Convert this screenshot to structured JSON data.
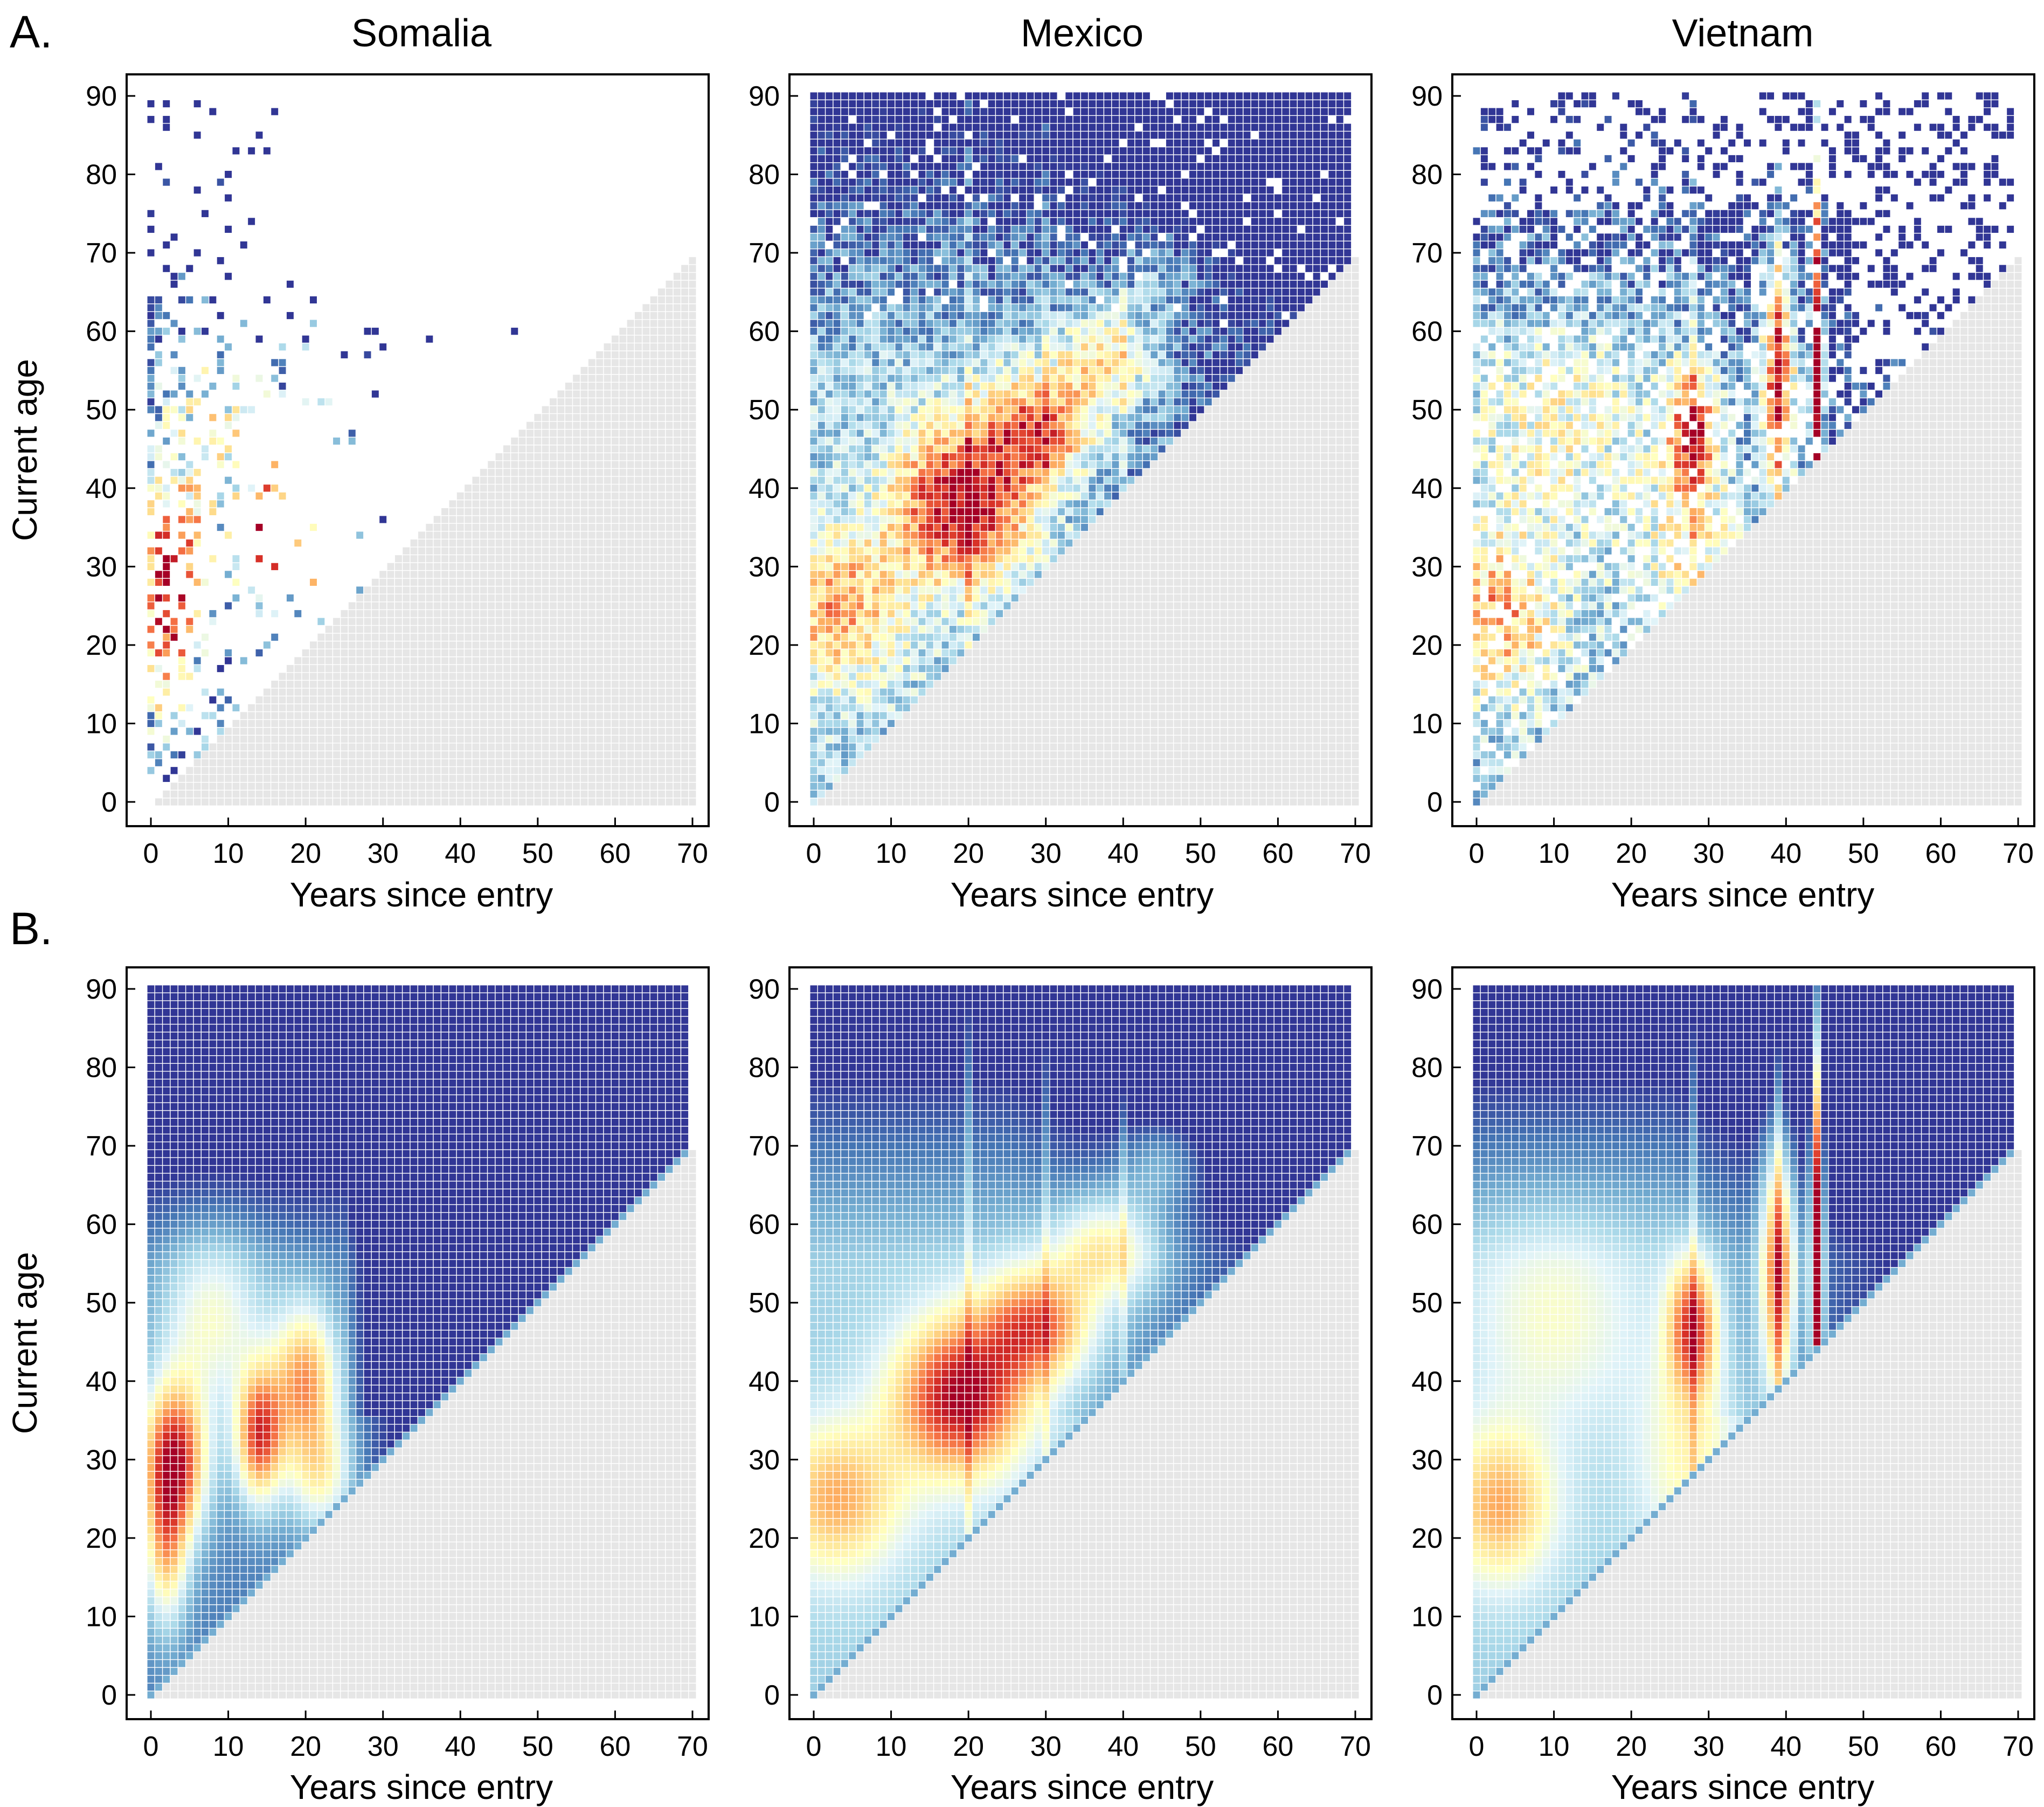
{
  "figure": {
    "row_labels": [
      "A.",
      "B."
    ],
    "country_titles": [
      "Somalia",
      "Mexico",
      "Vietnam"
    ]
  },
  "colors": {
    "palette_low": "#313695",
    "palette_mid": "#ffffbf",
    "palette_high": "#a50026",
    "grey_cell": "#e6e6e6",
    "grid_line": "#ffffff"
  },
  "chart_data": [
    {
      "type": "heatmap",
      "id": "A-somalia",
      "row": "A",
      "title": "Somalia",
      "variant": "observed-sparse",
      "xlabel": "Years since entry",
      "ylabel": "Current age",
      "xlim": [
        0,
        70
      ],
      "ylim": [
        0,
        90
      ],
      "x_ticks": [
        0,
        10,
        20,
        30,
        40,
        50,
        60,
        70
      ],
      "y_ticks": [
        0,
        10,
        20,
        30,
        40,
        50,
        60,
        70,
        80,
        90
      ],
      "max_years": 55,
      "colored_region": "age >= years since entry",
      "grey_region": "age < years since entry",
      "hotspots": [
        {
          "x": 3,
          "y": 30
        },
        {
          "x": 13,
          "y": 33
        },
        {
          "x": 21,
          "y": 37
        }
      ]
    },
    {
      "type": "heatmap",
      "id": "A-mexico",
      "row": "A",
      "title": "Mexico",
      "variant": "observed-dense",
      "xlabel": "Years since entry",
      "ylabel": "",
      "xlim": [
        0,
        70
      ],
      "ylim": [
        0,
        90
      ],
      "x_ticks": [
        0,
        10,
        20,
        30,
        40,
        50,
        60,
        70
      ],
      "y_ticks": [
        0,
        10,
        20,
        30,
        40,
        50,
        60,
        70,
        80,
        90
      ],
      "max_years": 69,
      "colored_region": "age >= years since entry",
      "grey_region": "age < years since entry",
      "hotspots": [
        {
          "x": 19,
          "y": 38
        },
        {
          "x": 30,
          "y": 48
        },
        {
          "x": 39,
          "y": 57
        }
      ]
    },
    {
      "type": "heatmap",
      "id": "A-vietnam",
      "row": "A",
      "title": "Vietnam",
      "variant": "observed-medium",
      "xlabel": "Years since entry",
      "ylabel": "",
      "xlim": [
        0,
        70
      ],
      "ylim": [
        0,
        90
      ],
      "x_ticks": [
        0,
        10,
        20,
        30,
        40,
        50,
        60,
        70
      ],
      "y_ticks": [
        0,
        10,
        20,
        30,
        40,
        50,
        60,
        70,
        80,
        90
      ],
      "max_years": 69,
      "colored_region": "age >= years since entry",
      "grey_region": "age < years since entry",
      "hotspots": [
        {
          "x": 28,
          "y": 47
        },
        {
          "x": 39,
          "y": 56
        },
        {
          "x": 44,
          "y": 58
        }
      ]
    },
    {
      "type": "heatmap",
      "id": "B-somalia",
      "row": "B",
      "title": "",
      "variant": "smoothed",
      "xlabel": "Years since entry",
      "ylabel": "Current age",
      "xlim": [
        0,
        70
      ],
      "ylim": [
        0,
        90
      ],
      "x_ticks": [
        0,
        10,
        20,
        30,
        40,
        50,
        60,
        70
      ],
      "y_ticks": [
        0,
        10,
        20,
        30,
        40,
        50,
        60,
        70,
        80,
        90
      ],
      "max_years": 69,
      "colored_region": "age >= years since entry",
      "grey_region": "age < years since entry",
      "hotspots": [
        {
          "x": 3,
          "y": 30
        },
        {
          "x": 14,
          "y": 33
        },
        {
          "x": 20,
          "y": 40
        }
      ]
    },
    {
      "type": "heatmap",
      "id": "B-mexico",
      "row": "B",
      "title": "",
      "variant": "smoothed",
      "xlabel": "Years since entry",
      "ylabel": "",
      "xlim": [
        0,
        70
      ],
      "ylim": [
        0,
        90
      ],
      "x_ticks": [
        0,
        10,
        20,
        30,
        40,
        50,
        60,
        70
      ],
      "y_ticks": [
        0,
        10,
        20,
        30,
        40,
        50,
        60,
        70,
        80,
        90
      ],
      "max_years": 69,
      "colored_region": "age >= years since entry",
      "grey_region": "age < years since entry",
      "hotspots": [
        {
          "x": 19,
          "y": 38
        },
        {
          "x": 30,
          "y": 48
        },
        {
          "x": 38,
          "y": 57
        }
      ]
    },
    {
      "type": "heatmap",
      "id": "B-vietnam",
      "row": "B",
      "title": "",
      "variant": "smoothed",
      "xlabel": "Years since entry",
      "ylabel": "",
      "xlim": [
        0,
        70
      ],
      "ylim": [
        0,
        90
      ],
      "x_ticks": [
        0,
        10,
        20,
        30,
        40,
        50,
        60,
        70
      ],
      "y_ticks": [
        0,
        10,
        20,
        30,
        40,
        50,
        60,
        70,
        80,
        90
      ],
      "max_years": 69,
      "colored_region": "age >= years since entry",
      "grey_region": "age < years since entry",
      "hotspots": [
        {
          "x": 28,
          "y": 47
        },
        {
          "x": 39,
          "y": 56
        },
        {
          "x": 44,
          "y": 58
        }
      ]
    }
  ]
}
